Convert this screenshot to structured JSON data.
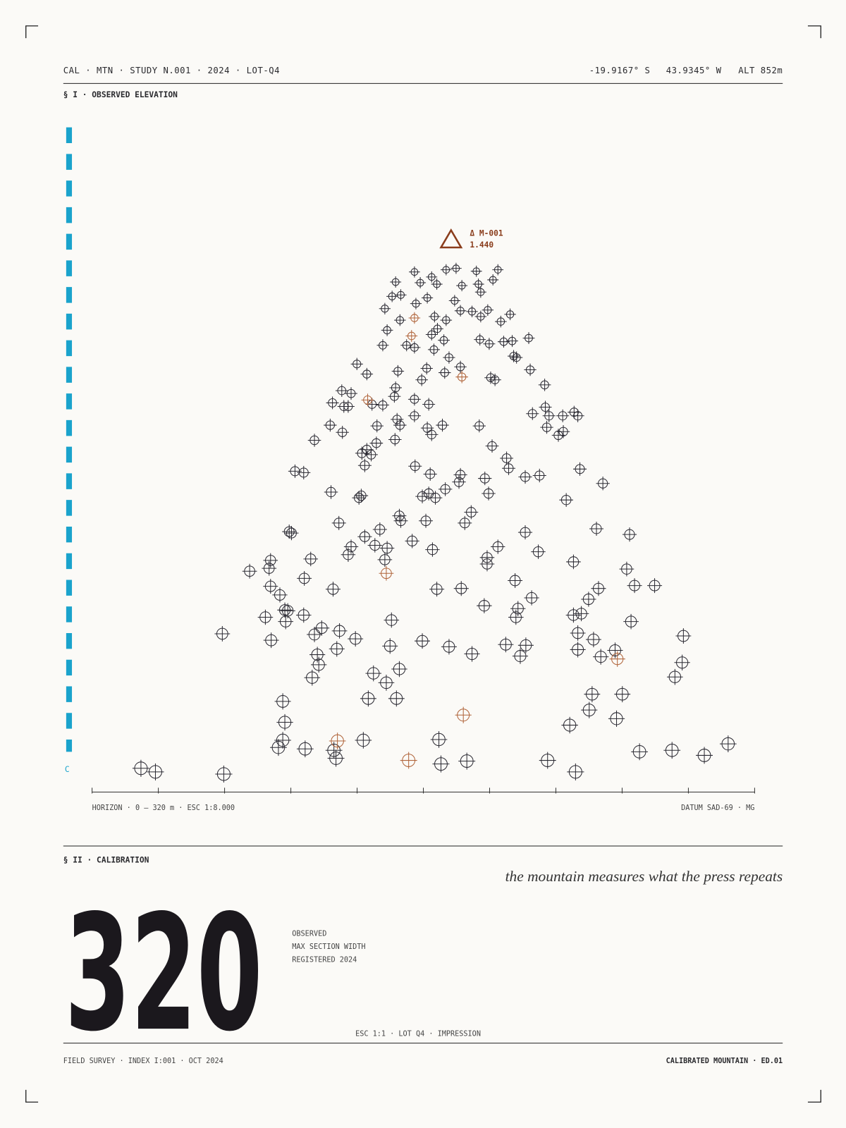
{
  "header": {
    "left": "CAL · MTN · STUDY N.001 · 2024 · LOT-Q4",
    "lat": "-19.9167° S",
    "lon": "43.9345° W",
    "alt": "ALT 852m"
  },
  "section1": "§ I · OBSERVED ELEVATION",
  "chart_data": {
    "type": "scatter",
    "annotation": {
      "label": "Δ M-001",
      "value": "1.440"
    },
    "axis_label": "C",
    "x_caption": "HORIZON · 0 — 320 m · ESC 1:8.000",
    "datum": "DATUM SAD-69 · MG",
    "xlim": [
      0,
      320
    ],
    "xticks": [
      0,
      32,
      64,
      96,
      128,
      160,
      192,
      224,
      256,
      288,
      320
    ],
    "ylim": [
      0,
      930
    ],
    "series": [
      {
        "color": "#2b2a33",
        "x": [
          155.7,
          164.0,
          171.0,
          175.8,
          185.6,
          196.0,
          146.6,
          158.5,
          166.5,
          178.6,
          186.6,
          193.6,
          144.9,
          149.1,
          161.9,
          175.1,
          187.7,
          156.4,
          141.4,
          165.4,
          171.0,
          177.9,
          183.5,
          191.1,
          201.9,
          148.7,
          187.7,
          197.4,
          142.5,
          164.0,
          166.8,
          169.9,
          187.3,
          191.8,
          198.8,
          202.9,
          210.9,
          140.4,
          151.9,
          155.7,
          165.1,
          172.4,
          203.6,
          205.0,
          127.9,
          132.7,
          147.7,
          161.6,
          170.3,
          177.9,
          192.5,
          194.6,
          211.6,
          159.2,
          218.6,
          120.6,
          125.1,
          146.6,
          116.1,
          121.6,
          123.7,
          135.2,
          140.4,
          146.0,
          155.7,
          162.6,
          212.7,
          218.9,
          220.7,
          227.3,
          232.8,
          234.6,
          115.0,
          120.9,
          137.6,
          147.3,
          148.7,
          155.7,
          161.9,
          164.0,
          169.2,
          187.0,
          219.6,
          225.2,
          227.6,
          107.4,
          130.3,
          132.7,
          134.8,
          137.3,
          146.3,
          193.2,
          200.2,
          131.7,
          156.0,
          98.0,
          102.2,
          163.3,
          177.9,
          189.7,
          201.2,
          209.2,
          216.1,
          235.6,
          246.7,
          115.4,
          128.9,
          130.0,
          159.5,
          162.6,
          165.8,
          170.6,
          177.2,
          191.5,
          229.0,
          148.4,
          149.1,
          161.2,
          183.1,
          180.0,
          119.2,
          96.3,
          95.2,
          139.0,
          131.7,
          154.6,
          125.1,
          136.6,
          142.5,
          164.4,
          196.0,
          209.2,
          215.5,
          243.6,
          259.6,
          86.2,
          105.6,
          123.7,
          141.4,
          190.8,
          190.8,
          232.5,
          76.1,
          85.5,
          102.5,
          86.2,
          116.4,
          166.5,
          178.3,
          204.3,
          258.2,
          262.0,
          271.7,
          90.7,
          212.3,
          239.8,
          244.6,
          83.7,
          93.1,
          94.5,
          93.5,
          102.2,
          144.6,
          189.4,
          205.7,
          204.7,
          232.5,
          236.3,
          260.3,
          62.9,
          86.5,
          107.4,
          110.9,
          119.5,
          127.2,
          159.5,
          172.4,
          143.9,
          118.2,
          108.8,
          109.5,
          183.5,
          199.8,
          206.8,
          209.5,
          234.6,
          234.6,
          242.2,
          245.7,
          252.6,
          285.6,
          285.0,
          281.5,
          106.3,
          135.9,
          148.4,
          142.1,
          133.4,
          147.0,
          92.1,
          241.5,
          256.1,
          240.1,
          253.3,
          93.1,
          230.7,
          92.1,
          90.0,
          102.9,
          116.8,
          131.0,
          167.5,
          168.5,
          181.0,
          117.8,
          220.0,
          264.4,
          280.1,
          295.7,
          307.2,
          23.6,
          30.6,
          63.6,
          233.5
        ],
        "values": [
          723,
          716,
          726,
          728,
          724,
          726,
          709,
          708,
          706,
          704,
          706,
          712,
          689,
          691,
          687,
          683,
          695,
          679,
          672,
          661,
          656,
          669,
          668,
          670,
          664,
          656,
          661,
          654,
          642,
          636,
          644,
          628,
          629,
          623,
          626,
          627,
          631,
          621,
          621,
          618,
          615,
          604,
          606,
          604,
          595,
          581,
          585,
          589,
          583,
          591,
          576,
          573,
          587,
          573,
          566,
          558,
          554,
          562,
          541,
          536,
          536,
          539,
          538,
          550,
          546,
          539,
          526,
          535,
          523,
          523,
          528,
          523,
          510,
          500,
          509,
          518,
          510,
          523,
          506,
          497,
          510,
          509,
          507,
          496,
          501,
          489,
          471,
          476,
          469,
          485,
          490,
          481,
          464,
          454,
          453,
          446,
          444,
          442,
          441,
          436,
          450,
          438,
          440,
          449,
          429,
          417,
          409,
          412,
          411,
          415,
          409,
          421,
          431,
          415,
          406,
          384,
          377,
          377,
          389,
          374,
          374,
          360,
          362,
          365,
          355,
          349,
          341,
          343,
          339,
          337,
          341,
          361,
          334,
          366,
          358,
          322,
          324,
          330,
          323,
          326,
          317,
          320,
          307,
          311,
          297,
          286,
          282,
          282,
          283,
          294,
          310,
          287,
          287,
          274,
          270,
          268,
          283,
          243,
          253,
          252,
          237,
          246,
          239,
          259,
          255,
          243,
          246,
          248,
          237,
          220,
          211,
          219,
          228,
          224,
          213,
          210,
          202,
          203,
          199,
          191,
          177,
          192,
          205,
          189,
          204,
          221,
          198,
          212,
          188,
          197,
          217,
          180,
          160,
          159,
          165,
          171,
          152,
          130,
          130,
          126,
          136,
          136,
          114,
          102,
          97,
          93,
          72,
          62,
          60,
          58,
          72,
          73,
          39,
          43,
          47,
          44,
          56,
          58,
          51,
          67,
          33,
          28,
          25,
          28
        ]
      },
      {
        "color": "#b0643a",
        "x": [
          155.7,
          154.3,
          178.6,
          133.1,
          142.1,
          253.7,
          179.3,
          118.5,
          152.9
        ],
        "values": [
          659,
          634,
          577,
          545,
          304,
          185,
          107,
          71,
          44
        ]
      }
    ]
  },
  "section2": "§ II · CALIBRATION",
  "quote": "the mountain measures what the press repeats",
  "big_number": "320",
  "caption_lines": [
    "OBSERVED",
    "MAX SECTION WIDTH",
    "REGISTERED 2024"
  ],
  "imprint": "ESC 1:1 · LOT Q4 · IMPRESSION",
  "footer": {
    "left": "FIELD SURVEY · INDEX I:001 · OCT 2024",
    "right": "CALIBRATED MOUNTAIN · ED.01"
  }
}
